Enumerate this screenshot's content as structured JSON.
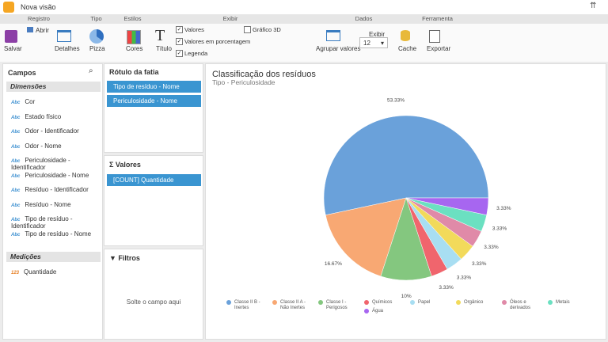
{
  "window": {
    "title": "Nova visão"
  },
  "ribbon": {
    "groups": [
      "Registro",
      "Tipo",
      "Estilos",
      "Exibir",
      "Dados",
      "Ferramenta"
    ],
    "save": "Salvar",
    "open": "Abrir",
    "details": "Detalhes",
    "chart_type": "Pizza",
    "colors": "Cores",
    "title_btn": "Título",
    "options": [
      {
        "label": "Valores",
        "checked": true
      },
      {
        "label": "Valores em porcentagem",
        "checked": true
      },
      {
        "label": "Legenda",
        "checked": true
      },
      {
        "label": "Gráfico 3D",
        "checked": false
      }
    ],
    "group_values": "Agrupar valores",
    "show": "Exibir",
    "show_count": "12",
    "cache": "Cache",
    "export": "Exportar"
  },
  "fields": {
    "title": "Campos",
    "dimensions_header": "Dimensões",
    "dimension_icon": "Abc",
    "dimensions": [
      "Cor",
      "Estado físico",
      "Odor - Identificador",
      "Odor - Nome",
      "Periculosidade - Identificador",
      "Periculosidade - Nome",
      "Resíduo - Identificador",
      "Resíduo - Nome",
      "Tipo de resíduo - Identificador",
      "Tipo de resíduo - Nome"
    ],
    "measures_header": "Medições",
    "measure_icon": "123",
    "measures": [
      "Quantidade"
    ]
  },
  "slice_label": {
    "title": "Rótulo da fatia",
    "items": [
      "Tipo de resíduo - Nome",
      "Periculosidade - Nome"
    ]
  },
  "values_panel": {
    "title": "Valores",
    "items": [
      "[COUNT] Quantidade"
    ]
  },
  "filters": {
    "title": "Filtros",
    "placeholder": "Solte o campo aqui"
  },
  "chart_data": {
    "type": "pie",
    "title": "Classificação dos resíduos",
    "subtitle": "Tipo - Periculosidade",
    "categories": [
      "Classe II B - Inertes",
      "Classe II A - Não Inertes",
      "Classe I - Perigosos",
      "Químicos",
      "Papel",
      "Orgânico",
      "Óleos e derivados",
      "Metais",
      "Água"
    ],
    "values": [
      53.33,
      16.67,
      10,
      3.33,
      3.33,
      3.33,
      3.33,
      3.33,
      3.33
    ],
    "value_labels": [
      "53.33%",
      "16.67%",
      "10%",
      "3.33%",
      "3.33%",
      "3.33%",
      "3.33%",
      "3.33%",
      "3.33%"
    ],
    "colors": [
      "#6aa1da",
      "#f8a873",
      "#84c77f",
      "#f0656d",
      "#a8def2",
      "#f2da5b",
      "#e08aa8",
      "#6be0c1",
      "#a766f0"
    ],
    "legend": "bottom"
  }
}
